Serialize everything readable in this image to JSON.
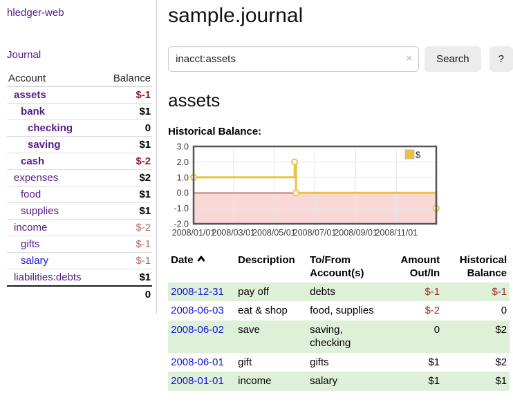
{
  "colors": {
    "link_purple": "#551a8b",
    "link_blue": "#1414e0",
    "negative_dark": "#8f1f1f",
    "negative_light": "#b46a6a",
    "row_stripe_green": "#dff0d8",
    "chart_line_gold": "#edc240"
  },
  "sidebar": {
    "brand": "hledger-web",
    "nav": {
      "journal": "Journal"
    },
    "accounts_table": {
      "header_account": "Account",
      "header_balance": "Balance",
      "rows": [
        {
          "name": "assets",
          "balance": "$-1"
        },
        {
          "name": "bank",
          "balance": "$1"
        },
        {
          "name": "checking",
          "balance": "0"
        },
        {
          "name": "saving",
          "balance": "$1"
        },
        {
          "name": "cash",
          "balance": "$-2"
        },
        {
          "name": "expenses",
          "balance": "$2"
        },
        {
          "name": "food",
          "balance": "$1"
        },
        {
          "name": "supplies",
          "balance": "$1"
        },
        {
          "name": "income",
          "balance": "$-2"
        },
        {
          "name": "gifts",
          "balance": "$-1"
        },
        {
          "name": "salary",
          "balance": "$-1"
        },
        {
          "name": "liabilities:debts",
          "balance": "$1"
        }
      ],
      "total": "0"
    }
  },
  "main": {
    "title": "sample.journal",
    "search": {
      "value": "inacct:assets",
      "clear_icon": "×",
      "button_label": "Search",
      "help_label": "?"
    },
    "account_heading": "assets",
    "chart_title": "Historical Balance:"
  },
  "chart_data": {
    "type": "line",
    "step": true,
    "title": "Historical Balance",
    "x": [
      "2008-01-01",
      "2008-06-01",
      "2008-06-02",
      "2008-06-03",
      "2008-12-31"
    ],
    "series": [
      {
        "name": "$",
        "values": [
          1,
          2,
          2,
          0,
          -1
        ]
      }
    ],
    "xlim": [
      "2008/01/01",
      "2008/12/31"
    ],
    "ylim": [
      -2,
      3
    ],
    "yticks": [
      3,
      2,
      1,
      0,
      -1,
      -2
    ],
    "xticks": [
      "2008/01/01",
      "2008/03/01",
      "2008/05/01",
      "2008/07/01",
      "2008/09/01",
      "2008/11/01"
    ],
    "grid": true,
    "legend_position": "top-right",
    "line_color": "#edc240",
    "marker_fill": "#ffffff",
    "zero_line_color": "#8b0000",
    "negative_fill": "#fbd8d8",
    "border_color": "#545454"
  },
  "register": {
    "headers": {
      "date": "Date",
      "description": "Description",
      "accounts": "To/From Account(s)",
      "amount": "Amount Out/In",
      "balance": "Historical Balance"
    },
    "rows": [
      {
        "date": "2008-12-31",
        "description": "pay off",
        "accounts": "debts",
        "amount": "$-1",
        "balance": "$-1"
      },
      {
        "date": "2008-06-03",
        "description": "eat & shop",
        "accounts": "food, supplies",
        "amount": "$-2",
        "balance": "0"
      },
      {
        "date": "2008-06-02",
        "description": "save",
        "accounts": "saving, checking",
        "amount": "0",
        "balance": "$2"
      },
      {
        "date": "2008-06-01",
        "description": "gift",
        "accounts": "gifts",
        "amount": "$1",
        "balance": "$2"
      },
      {
        "date": "2008-01-01",
        "description": "income",
        "accounts": "salary",
        "amount": "$1",
        "balance": "$1"
      }
    ]
  }
}
